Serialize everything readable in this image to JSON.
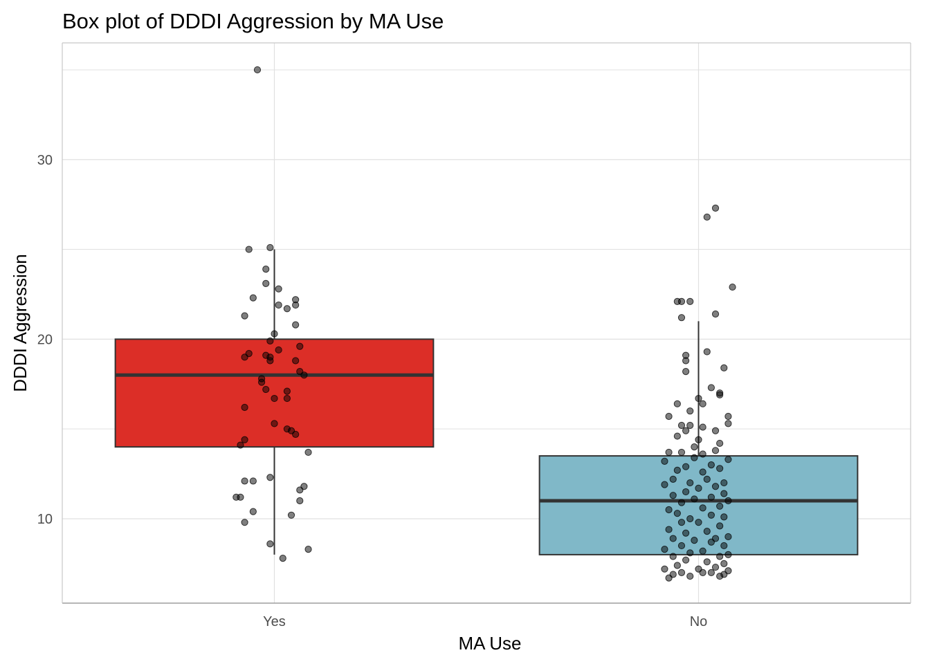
{
  "chart_data": {
    "type": "box",
    "title": "Box plot of DDDI Aggression by MA Use",
    "xlabel": "MA Use",
    "ylabel": "DDDI Aggression",
    "categories": [
      "Yes",
      "No"
    ],
    "ylim": [
      5.3,
      36.5
    ],
    "y_ticks": [
      10,
      20,
      30
    ],
    "grid": true,
    "legend": "none",
    "colors": {
      "Yes": "#dc2e27",
      "No": "#80b8c8",
      "points": "#000000",
      "grid": "#e0e0e0"
    },
    "boxes": [
      {
        "category": "Yes",
        "whisker_low": 8.0,
        "q1": 14.0,
        "median": 18.0,
        "q3": 20.0,
        "whisker_high": 25.0,
        "points": [
          [
            -0.04,
            35.0
          ],
          [
            -0.06,
            25.0
          ],
          [
            -0.01,
            25.1
          ],
          [
            -0.02,
            23.9
          ],
          [
            -0.02,
            23.1
          ],
          [
            -0.05,
            22.3
          ],
          [
            0.01,
            22.8
          ],
          [
            0.05,
            22.2
          ],
          [
            0.01,
            21.9
          ],
          [
            0.03,
            21.7
          ],
          [
            0.05,
            21.9
          ],
          [
            -0.07,
            21.3
          ],
          [
            0.05,
            20.8
          ],
          [
            0.0,
            20.3
          ],
          [
            -0.01,
            19.9
          ],
          [
            0.06,
            19.6
          ],
          [
            0.01,
            19.4
          ],
          [
            -0.07,
            19.0
          ],
          [
            -0.06,
            19.2
          ],
          [
            -0.02,
            19.1
          ],
          [
            -0.01,
            18.8
          ],
          [
            0.05,
            18.8
          ],
          [
            -0.01,
            19.0
          ],
          [
            0.07,
            18.0
          ],
          [
            0.06,
            18.2
          ],
          [
            -0.03,
            17.8
          ],
          [
            -0.03,
            17.6
          ],
          [
            -0.02,
            17.2
          ],
          [
            0.03,
            17.1
          ],
          [
            0.0,
            16.7
          ],
          [
            0.03,
            16.7
          ],
          [
            -0.07,
            16.2
          ],
          [
            0.0,
            15.3
          ],
          [
            0.03,
            15.0
          ],
          [
            0.04,
            14.9
          ],
          [
            0.05,
            14.7
          ],
          [
            -0.07,
            14.4
          ],
          [
            -0.08,
            14.1
          ],
          [
            0.08,
            13.7
          ],
          [
            -0.01,
            12.3
          ],
          [
            -0.07,
            12.1
          ],
          [
            -0.05,
            12.1
          ],
          [
            0.07,
            11.8
          ],
          [
            0.06,
            11.6
          ],
          [
            -0.08,
            11.2
          ],
          [
            -0.09,
            11.2
          ],
          [
            0.06,
            11.0
          ],
          [
            -0.05,
            10.4
          ],
          [
            0.04,
            10.2
          ],
          [
            -0.07,
            9.8
          ],
          [
            -0.01,
            8.6
          ],
          [
            0.08,
            8.3
          ],
          [
            0.02,
            7.8
          ]
        ]
      },
      {
        "category": "No",
        "whisker_low": 8.0,
        "q1": 8.0,
        "median": 11.0,
        "q3": 13.5,
        "whisker_high": 21.0,
        "points": [
          [
            0.04,
            27.3
          ],
          [
            0.02,
            26.8
          ],
          [
            0.08,
            22.9
          ],
          [
            -0.05,
            22.1
          ],
          [
            -0.04,
            22.1
          ],
          [
            -0.02,
            22.1
          ],
          [
            0.04,
            21.4
          ],
          [
            -0.04,
            21.2
          ],
          [
            0.02,
            19.3
          ],
          [
            -0.03,
            19.1
          ],
          [
            0.06,
            18.4
          ],
          [
            -0.03,
            18.8
          ],
          [
            -0.03,
            18.2
          ],
          [
            0.03,
            17.3
          ],
          [
            0.05,
            17.0
          ],
          [
            0.0,
            16.7
          ],
          [
            0.05,
            16.9
          ],
          [
            -0.05,
            16.4
          ],
          [
            0.01,
            16.4
          ],
          [
            -0.02,
            16.0
          ],
          [
            -0.07,
            15.7
          ],
          [
            0.07,
            15.7
          ],
          [
            -0.04,
            15.2
          ],
          [
            -0.02,
            15.2
          ],
          [
            0.01,
            15.1
          ],
          [
            0.07,
            15.3
          ],
          [
            -0.03,
            14.9
          ],
          [
            0.04,
            14.9
          ],
          [
            -0.05,
            14.6
          ],
          [
            0.0,
            14.4
          ],
          [
            -0.01,
            14.0
          ],
          [
            0.05,
            14.2
          ],
          [
            -0.04,
            13.7
          ],
          [
            -0.07,
            13.7
          ],
          [
            0.01,
            13.6
          ],
          [
            0.04,
            13.8
          ],
          [
            -0.01,
            13.4
          ],
          [
            0.07,
            13.3
          ],
          [
            -0.08,
            13.2
          ],
          [
            0.03,
            13.0
          ],
          [
            -0.03,
            12.9
          ],
          [
            0.05,
            12.8
          ],
          [
            -0.05,
            12.7
          ],
          [
            0.01,
            12.6
          ],
          [
            -0.06,
            12.2
          ],
          [
            0.02,
            12.2
          ],
          [
            -0.02,
            12.0
          ],
          [
            0.06,
            12.0
          ],
          [
            -0.08,
            11.9
          ],
          [
            0.04,
            11.8
          ],
          [
            0.0,
            11.7
          ],
          [
            -0.03,
            11.5
          ],
          [
            -0.06,
            11.3
          ],
          [
            0.06,
            11.4
          ],
          [
            0.03,
            11.2
          ],
          [
            -0.01,
            11.1
          ],
          [
            0.07,
            11.0
          ],
          [
            -0.04,
            10.9
          ],
          [
            0.05,
            10.7
          ],
          [
            -0.07,
            10.5
          ],
          [
            0.01,
            10.6
          ],
          [
            -0.05,
            10.3
          ],
          [
            0.03,
            10.2
          ],
          [
            -0.02,
            10.0
          ],
          [
            0.06,
            10.1
          ],
          [
            -0.04,
            9.8
          ],
          [
            0.0,
            9.8
          ],
          [
            0.05,
            9.6
          ],
          [
            -0.07,
            9.4
          ],
          [
            0.02,
            9.3
          ],
          [
            -0.03,
            9.2
          ],
          [
            0.07,
            9.0
          ],
          [
            -0.06,
            8.9
          ],
          [
            0.04,
            8.9
          ],
          [
            -0.01,
            8.8
          ],
          [
            0.03,
            8.7
          ],
          [
            -0.04,
            8.5
          ],
          [
            0.06,
            8.5
          ],
          [
            -0.08,
            8.3
          ],
          [
            0.01,
            8.2
          ],
          [
            -0.02,
            8.1
          ],
          [
            0.07,
            8.0
          ],
          [
            -0.06,
            7.9
          ],
          [
            0.05,
            7.9
          ],
          [
            -0.03,
            7.7
          ],
          [
            0.02,
            7.6
          ],
          [
            0.06,
            7.5
          ],
          [
            -0.05,
            7.4
          ],
          [
            0.04,
            7.3
          ],
          [
            -0.08,
            7.2
          ],
          [
            0.0,
            7.2
          ],
          [
            0.07,
            7.1
          ],
          [
            -0.04,
            7.0
          ],
          [
            0.03,
            7.0
          ],
          [
            -0.06,
            6.9
          ],
          [
            0.05,
            6.8
          ],
          [
            -0.02,
            6.8
          ],
          [
            0.01,
            7.0
          ],
          [
            -0.07,
            6.7
          ],
          [
            0.06,
            6.9
          ]
        ]
      }
    ]
  }
}
